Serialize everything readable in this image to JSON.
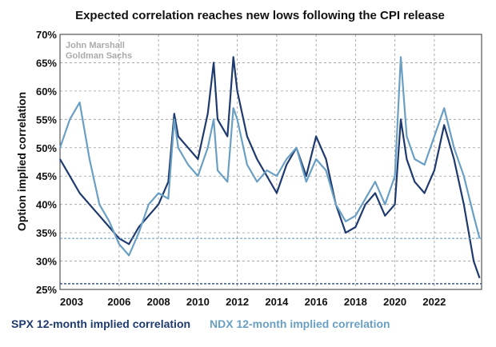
{
  "chart_data": {
    "type": "line",
    "title": "Expected correlation reaches new lows following the CPI release",
    "ylabel": "Option implied correlation",
    "annotation": [
      "John Marshall",
      "Goldman Sachs"
    ],
    "x": [
      2003.0,
      2003.5,
      2004.0,
      2004.5,
      2005.0,
      2005.5,
      2006.0,
      2006.5,
      2007.0,
      2007.5,
      2008.0,
      2008.5,
      2008.8,
      2009.0,
      2009.5,
      2010.0,
      2010.5,
      2010.8,
      2011.0,
      2011.5,
      2011.8,
      2012.0,
      2012.5,
      2013.0,
      2013.5,
      2014.0,
      2014.5,
      2015.0,
      2015.5,
      2016.0,
      2016.5,
      2017.0,
      2017.5,
      2018.0,
      2018.5,
      2019.0,
      2019.5,
      2020.0,
      2020.3,
      2020.6,
      2021.0,
      2021.5,
      2022.0,
      2022.5,
      2023.0,
      2023.5,
      2024.0,
      2024.3
    ],
    "series": [
      {
        "name": "SPX 12-month implied correlation",
        "color": "#1f3a6e",
        "values": [
          48,
          45,
          42,
          40,
          38,
          36,
          34,
          33,
          36,
          38,
          40,
          44,
          56,
          52,
          50,
          48,
          56,
          65,
          55,
          52,
          66,
          60,
          52,
          48,
          45,
          42,
          47,
          50,
          45,
          52,
          48,
          40,
          35,
          36,
          40,
          42,
          38,
          40,
          55,
          48,
          44,
          42,
          46,
          54,
          48,
          40,
          30,
          27
        ]
      },
      {
        "name": "NDX 12-month implied correlation",
        "color": "#6a9fc4",
        "values": [
          50,
          55,
          58,
          48,
          40,
          37,
          33,
          31,
          35,
          40,
          42,
          41,
          55,
          50,
          47,
          45,
          50,
          55,
          46,
          44,
          57,
          55,
          47,
          44,
          46,
          45,
          48,
          50,
          44,
          48,
          46,
          40,
          37,
          38,
          41,
          44,
          40,
          45,
          66,
          52,
          48,
          47,
          52,
          57,
          50,
          45,
          38,
          34
        ]
      }
    ],
    "hlines": [
      {
        "value": 34,
        "color": "#6a9fc4"
      },
      {
        "value": 26,
        "color": "#1f3a6e"
      }
    ],
    "xlim": [
      2003,
      2024.4
    ],
    "xticks": [
      2003,
      2006,
      2008,
      2010,
      2012,
      2014,
      2016,
      2018,
      2020,
      2022
    ],
    "ylim": [
      25,
      70
    ],
    "yticks": [
      {
        "value": 25,
        "label": "25%"
      },
      {
        "value": 30,
        "label": "30%"
      },
      {
        "value": 35,
        "label": "35%"
      },
      {
        "value": 40,
        "label": "40%"
      },
      {
        "value": 45,
        "label": "45%"
      },
      {
        "value": 50,
        "label": "50%"
      },
      {
        "value": 55,
        "label": "55%"
      },
      {
        "value": 60,
        "label": "60%"
      },
      {
        "value": 65,
        "label": "65%"
      },
      {
        "value": 70,
        "label": "70%"
      }
    ],
    "grid": true
  }
}
